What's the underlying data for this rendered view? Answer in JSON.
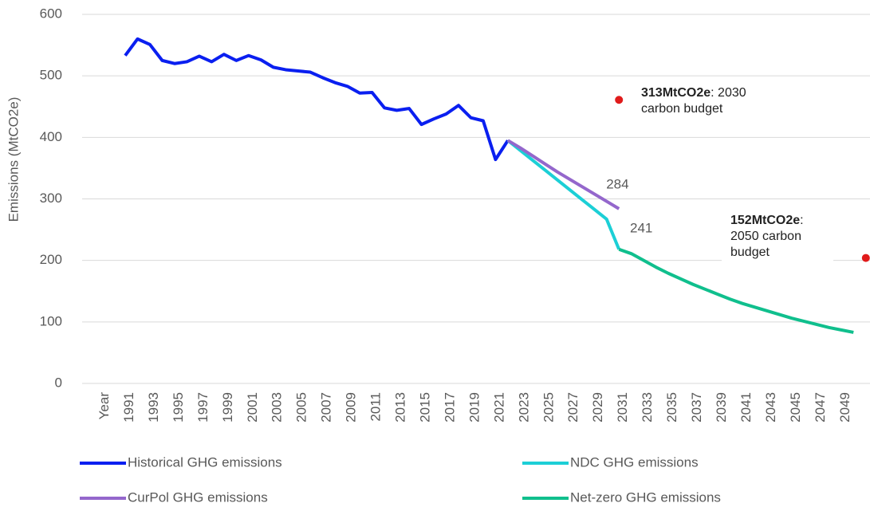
{
  "chart_data": {
    "type": "line",
    "y_label": "Emissions (MtCO2e)",
    "categories": [
      "Year",
      null,
      "1991",
      null,
      "1993",
      null,
      "1995",
      null,
      "1997",
      null,
      "1999",
      null,
      "2001",
      null,
      "2003",
      null,
      "2005",
      null,
      "2007",
      null,
      "2009",
      null,
      "2011",
      null,
      "2013",
      null,
      "2015",
      null,
      "2017",
      null,
      "2019",
      null,
      "2021",
      null,
      "2023",
      null,
      "2025",
      null,
      "2027",
      null,
      "2029",
      null,
      "2031",
      null,
      "2033",
      null,
      "2035",
      null,
      "2037",
      null,
      "2039",
      null,
      "2041",
      null,
      "2043",
      null,
      "2045",
      null,
      "2047",
      null,
      "2049",
      null
    ],
    "series": [
      {
        "name": "Historical GHG emissions",
        "color": "#0a1ff0",
        "values": [
          null,
          533,
          560,
          551,
          525,
          520,
          523,
          532,
          523,
          535,
          525,
          533,
          526,
          514,
          510,
          508,
          506,
          497,
          489,
          483,
          472,
          473,
          448,
          444,
          447,
          421,
          430,
          438,
          452,
          432,
          427,
          364,
          395,
          null,
          null,
          null,
          null,
          null,
          null,
          null,
          null,
          null,
          null,
          null,
          null,
          null,
          null,
          null,
          null,
          null,
          null,
          null,
          null,
          null,
          null,
          null,
          null,
          null,
          null,
          null,
          null,
          null
        ]
      },
      {
        "name": "NDC GHG emissions",
        "color": "#1ccfd6",
        "values": [
          null,
          null,
          null,
          null,
          null,
          null,
          null,
          null,
          null,
          null,
          null,
          null,
          null,
          null,
          null,
          null,
          null,
          null,
          null,
          null,
          null,
          null,
          null,
          null,
          null,
          null,
          null,
          null,
          null,
          null,
          null,
          null,
          395,
          379,
          363,
          347,
          331,
          315,
          299,
          283,
          267,
          218,
          null,
          null,
          null,
          null,
          null,
          null,
          null,
          null,
          null,
          null,
          null,
          null,
          null,
          null,
          null,
          null,
          null,
          null,
          null,
          null
        ]
      },
      {
        "name": "CurPol GHG emissions",
        "color": "#9467cc",
        "end_label": true,
        "values": [
          null,
          null,
          null,
          null,
          null,
          null,
          null,
          null,
          null,
          null,
          null,
          null,
          null,
          null,
          null,
          null,
          null,
          null,
          null,
          null,
          null,
          null,
          null,
          null,
          null,
          null,
          null,
          null,
          null,
          null,
          null,
          null,
          395,
          383,
          370,
          357,
          344,
          332,
          320,
          308,
          296,
          284,
          null,
          null,
          null,
          null,
          null,
          null,
          null,
          null,
          null,
          null,
          null,
          null,
          null,
          null,
          null,
          null,
          null,
          null,
          null,
          null
        ]
      },
      {
        "name": "Net-zero GHG emissions",
        "color": "#10bf8d",
        "values": [
          null,
          null,
          null,
          null,
          null,
          null,
          null,
          null,
          null,
          null,
          null,
          null,
          null,
          null,
          null,
          null,
          null,
          null,
          null,
          null,
          null,
          null,
          null,
          null,
          null,
          null,
          null,
          null,
          null,
          null,
          null,
          null,
          null,
          null,
          null,
          null,
          null,
          null,
          null,
          null,
          null,
          218,
          211,
          200,
          189,
          179,
          170,
          161,
          153,
          145,
          137,
          130,
          124,
          118,
          112,
          106,
          101,
          96,
          91,
          87,
          83,
          null
        ]
      }
    ],
    "budget_points": {
      "color": "#e01b1b",
      "values": [
        null,
        null,
        null,
        null,
        null,
        null,
        null,
        null,
        null,
        null,
        null,
        null,
        null,
        null,
        null,
        null,
        null,
        null,
        null,
        null,
        null,
        null,
        null,
        null,
        null,
        null,
        null,
        null,
        null,
        null,
        null,
        null,
        null,
        null,
        null,
        null,
        null,
        null,
        null,
        null,
        null,
        461,
        null,
        null,
        null,
        null,
        null,
        null,
        null,
        null,
        null,
        null,
        null,
        null,
        null,
        null,
        null,
        null,
        null,
        null,
        null,
        204
      ]
    },
    "annotations": [
      {
        "bold": "313MtCO2e",
        "lines": [
          ": 2030",
          "carbon budget"
        ]
      },
      {
        "bold": "152MtCO2e",
        "lines": [
          ":",
          "2050 carbon",
          "budget"
        ]
      },
      {
        "text": "241"
      }
    ],
    "ylim": [
      0,
      600
    ],
    "yticks": [
      0,
      100,
      200,
      300,
      400,
      500,
      600
    ],
    "grid": true
  }
}
